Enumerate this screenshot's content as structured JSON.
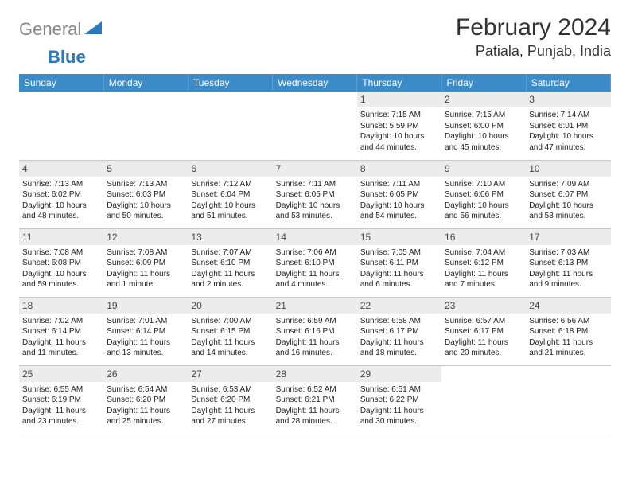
{
  "logo": {
    "part1": "General",
    "part2": "Blue"
  },
  "title": "February 2024",
  "location": "Patiala, Punjab, India",
  "colors": {
    "header_bg": "#3b8bc9",
    "header_text": "#ffffff",
    "daynum_bg": "#ececec",
    "border": "#c8c8c8",
    "logo_gray": "#888888",
    "logo_blue": "#2a78bd"
  },
  "days_of_week": [
    "Sunday",
    "Monday",
    "Tuesday",
    "Wednesday",
    "Thursday",
    "Friday",
    "Saturday"
  ],
  "weeks": [
    [
      null,
      null,
      null,
      null,
      {
        "n": "1",
        "sr": "Sunrise: 7:15 AM",
        "ss": "Sunset: 5:59 PM",
        "dl": "Daylight: 10 hours and 44 minutes."
      },
      {
        "n": "2",
        "sr": "Sunrise: 7:15 AM",
        "ss": "Sunset: 6:00 PM",
        "dl": "Daylight: 10 hours and 45 minutes."
      },
      {
        "n": "3",
        "sr": "Sunrise: 7:14 AM",
        "ss": "Sunset: 6:01 PM",
        "dl": "Daylight: 10 hours and 47 minutes."
      }
    ],
    [
      {
        "n": "4",
        "sr": "Sunrise: 7:13 AM",
        "ss": "Sunset: 6:02 PM",
        "dl": "Daylight: 10 hours and 48 minutes."
      },
      {
        "n": "5",
        "sr": "Sunrise: 7:13 AM",
        "ss": "Sunset: 6:03 PM",
        "dl": "Daylight: 10 hours and 50 minutes."
      },
      {
        "n": "6",
        "sr": "Sunrise: 7:12 AM",
        "ss": "Sunset: 6:04 PM",
        "dl": "Daylight: 10 hours and 51 minutes."
      },
      {
        "n": "7",
        "sr": "Sunrise: 7:11 AM",
        "ss": "Sunset: 6:05 PM",
        "dl": "Daylight: 10 hours and 53 minutes."
      },
      {
        "n": "8",
        "sr": "Sunrise: 7:11 AM",
        "ss": "Sunset: 6:05 PM",
        "dl": "Daylight: 10 hours and 54 minutes."
      },
      {
        "n": "9",
        "sr": "Sunrise: 7:10 AM",
        "ss": "Sunset: 6:06 PM",
        "dl": "Daylight: 10 hours and 56 minutes."
      },
      {
        "n": "10",
        "sr": "Sunrise: 7:09 AM",
        "ss": "Sunset: 6:07 PM",
        "dl": "Daylight: 10 hours and 58 minutes."
      }
    ],
    [
      {
        "n": "11",
        "sr": "Sunrise: 7:08 AM",
        "ss": "Sunset: 6:08 PM",
        "dl": "Daylight: 10 hours and 59 minutes."
      },
      {
        "n": "12",
        "sr": "Sunrise: 7:08 AM",
        "ss": "Sunset: 6:09 PM",
        "dl": "Daylight: 11 hours and 1 minute."
      },
      {
        "n": "13",
        "sr": "Sunrise: 7:07 AM",
        "ss": "Sunset: 6:10 PM",
        "dl": "Daylight: 11 hours and 2 minutes."
      },
      {
        "n": "14",
        "sr": "Sunrise: 7:06 AM",
        "ss": "Sunset: 6:10 PM",
        "dl": "Daylight: 11 hours and 4 minutes."
      },
      {
        "n": "15",
        "sr": "Sunrise: 7:05 AM",
        "ss": "Sunset: 6:11 PM",
        "dl": "Daylight: 11 hours and 6 minutes."
      },
      {
        "n": "16",
        "sr": "Sunrise: 7:04 AM",
        "ss": "Sunset: 6:12 PM",
        "dl": "Daylight: 11 hours and 7 minutes."
      },
      {
        "n": "17",
        "sr": "Sunrise: 7:03 AM",
        "ss": "Sunset: 6:13 PM",
        "dl": "Daylight: 11 hours and 9 minutes."
      }
    ],
    [
      {
        "n": "18",
        "sr": "Sunrise: 7:02 AM",
        "ss": "Sunset: 6:14 PM",
        "dl": "Daylight: 11 hours and 11 minutes."
      },
      {
        "n": "19",
        "sr": "Sunrise: 7:01 AM",
        "ss": "Sunset: 6:14 PM",
        "dl": "Daylight: 11 hours and 13 minutes."
      },
      {
        "n": "20",
        "sr": "Sunrise: 7:00 AM",
        "ss": "Sunset: 6:15 PM",
        "dl": "Daylight: 11 hours and 14 minutes."
      },
      {
        "n": "21",
        "sr": "Sunrise: 6:59 AM",
        "ss": "Sunset: 6:16 PM",
        "dl": "Daylight: 11 hours and 16 minutes."
      },
      {
        "n": "22",
        "sr": "Sunrise: 6:58 AM",
        "ss": "Sunset: 6:17 PM",
        "dl": "Daylight: 11 hours and 18 minutes."
      },
      {
        "n": "23",
        "sr": "Sunrise: 6:57 AM",
        "ss": "Sunset: 6:17 PM",
        "dl": "Daylight: 11 hours and 20 minutes."
      },
      {
        "n": "24",
        "sr": "Sunrise: 6:56 AM",
        "ss": "Sunset: 6:18 PM",
        "dl": "Daylight: 11 hours and 21 minutes."
      }
    ],
    [
      {
        "n": "25",
        "sr": "Sunrise: 6:55 AM",
        "ss": "Sunset: 6:19 PM",
        "dl": "Daylight: 11 hours and 23 minutes."
      },
      {
        "n": "26",
        "sr": "Sunrise: 6:54 AM",
        "ss": "Sunset: 6:20 PM",
        "dl": "Daylight: 11 hours and 25 minutes."
      },
      {
        "n": "27",
        "sr": "Sunrise: 6:53 AM",
        "ss": "Sunset: 6:20 PM",
        "dl": "Daylight: 11 hours and 27 minutes."
      },
      {
        "n": "28",
        "sr": "Sunrise: 6:52 AM",
        "ss": "Sunset: 6:21 PM",
        "dl": "Daylight: 11 hours and 28 minutes."
      },
      {
        "n": "29",
        "sr": "Sunrise: 6:51 AM",
        "ss": "Sunset: 6:22 PM",
        "dl": "Daylight: 11 hours and 30 minutes."
      },
      null,
      null
    ]
  ]
}
